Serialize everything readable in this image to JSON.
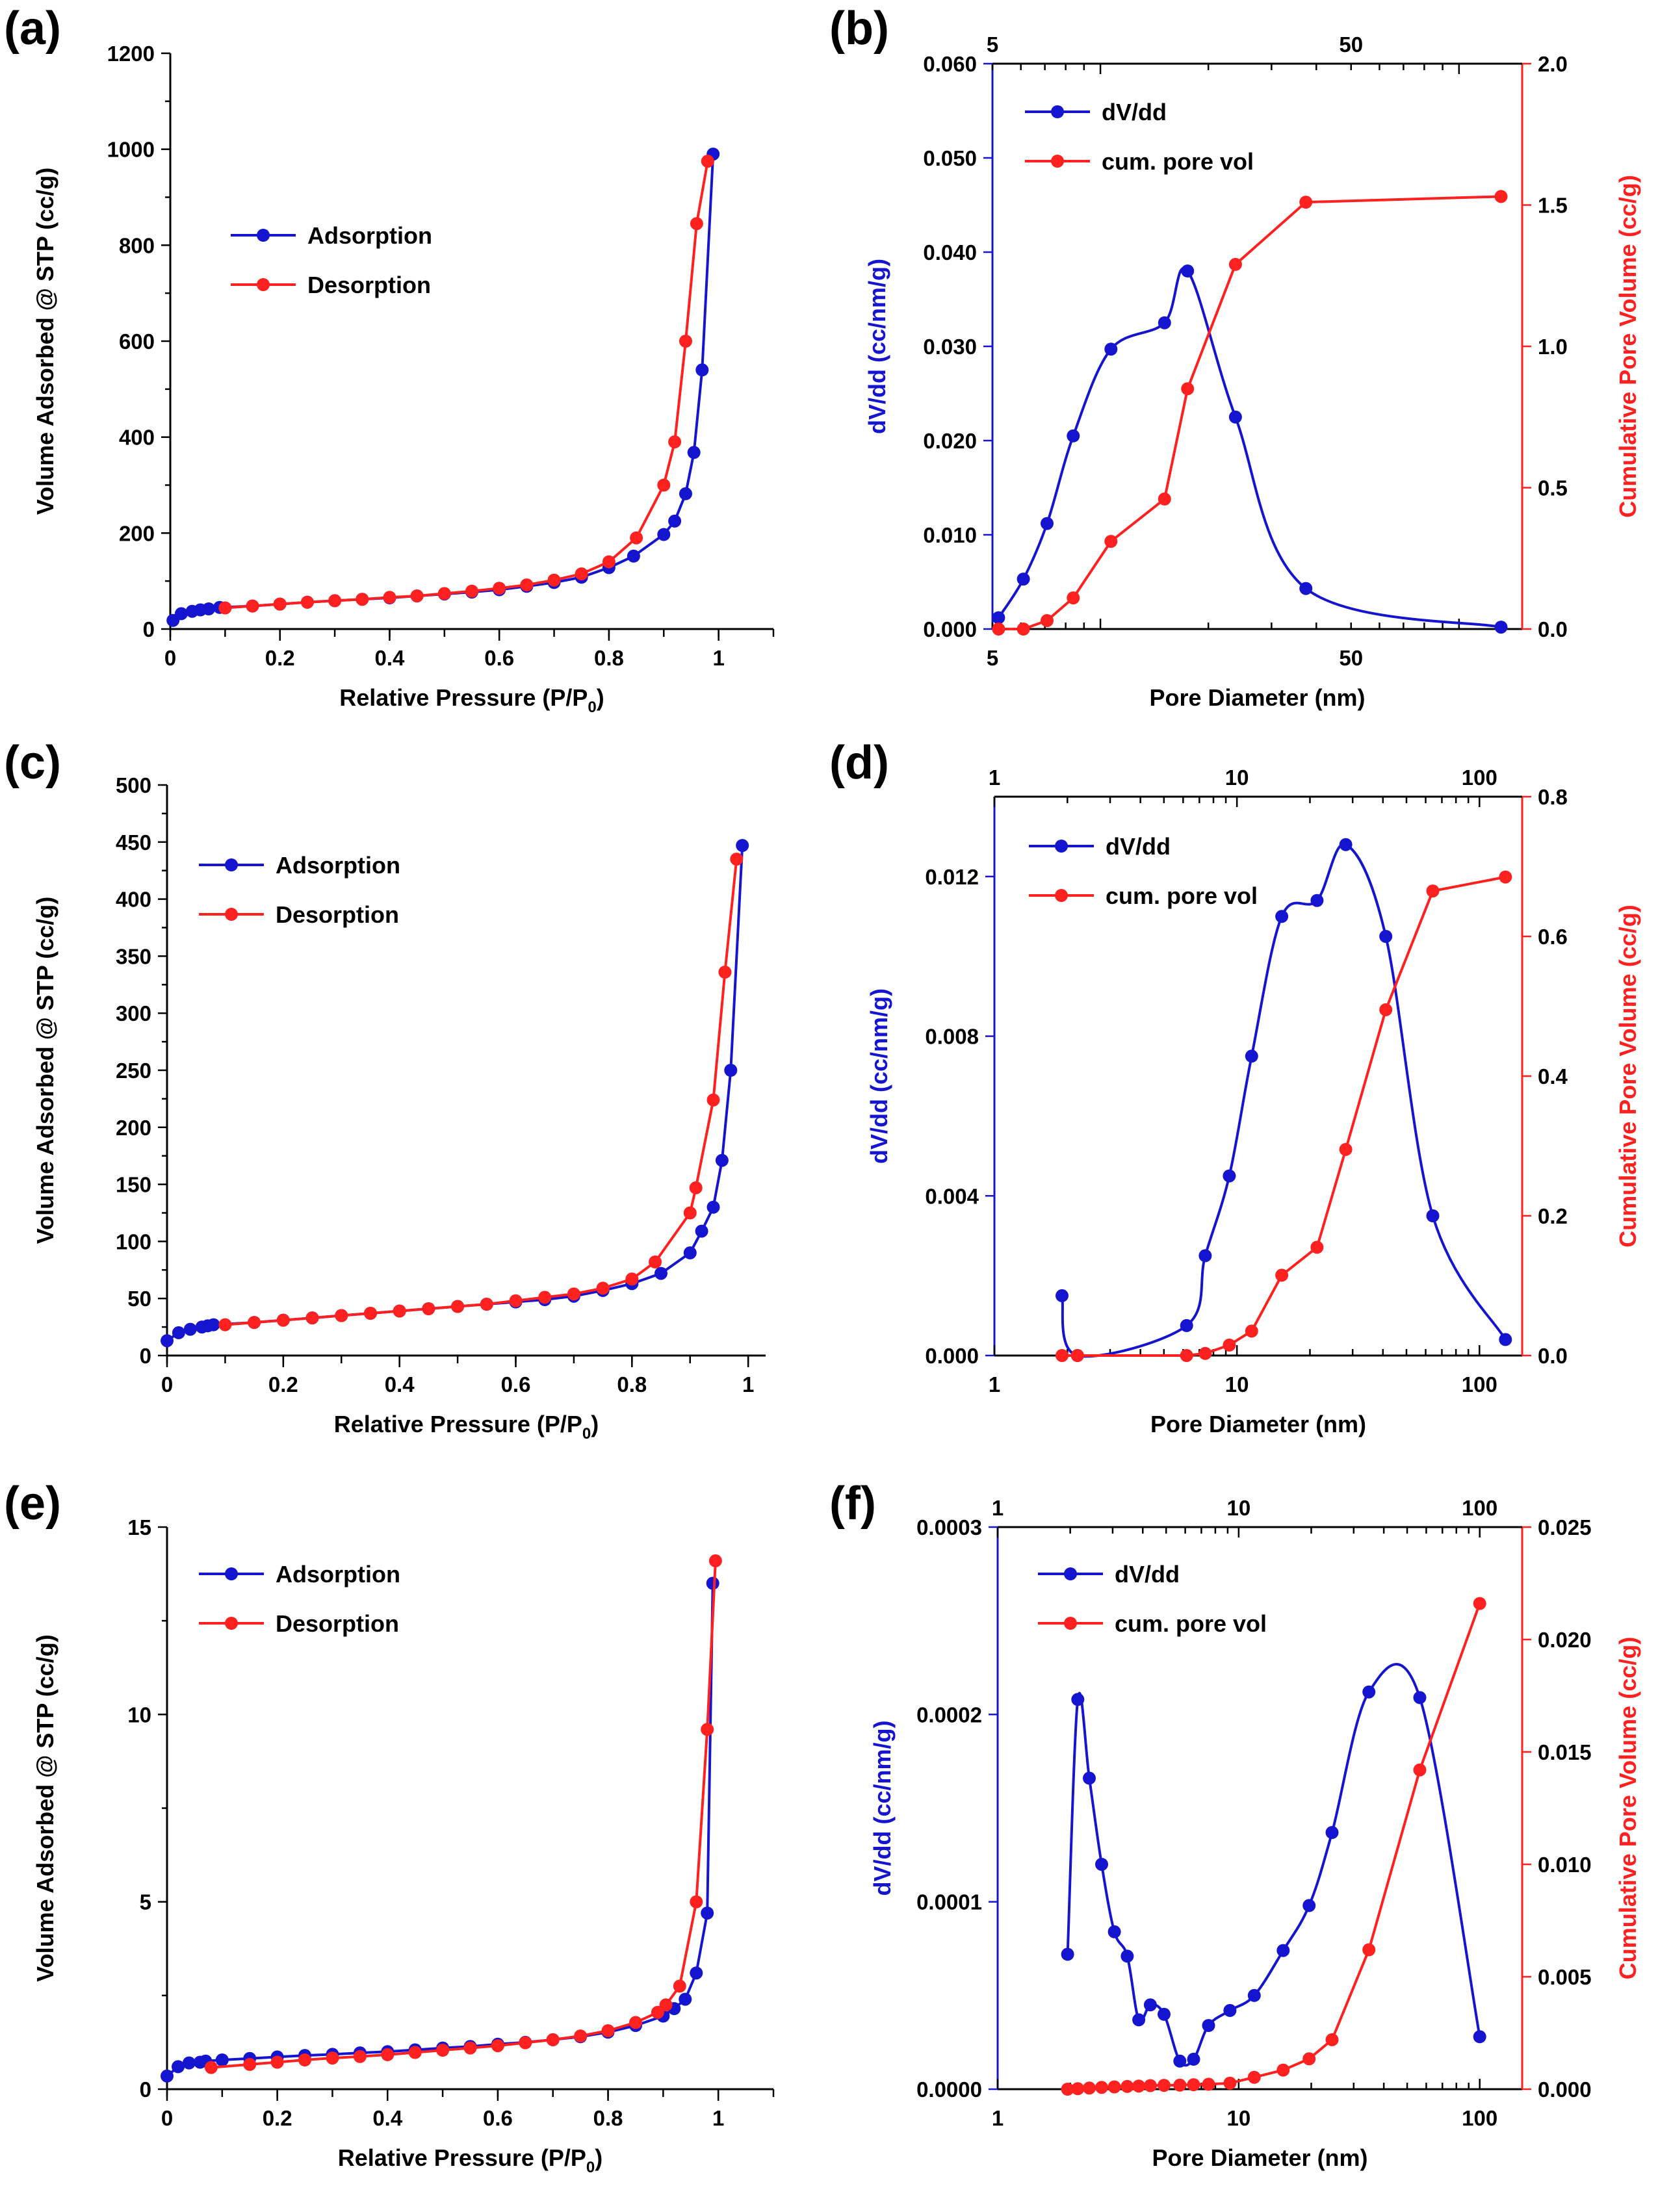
{
  "colors": {
    "blue": "#1515d0",
    "red": "#ff2020",
    "axis": "#000000"
  },
  "chart_data": [
    {
      "id": "a",
      "label": "(a)",
      "type": "line",
      "xscale": "linear",
      "xlabel_main": "Relative Pressure (P/P",
      "xlabel_sub": "0",
      "xlabel_end": ")",
      "ylabel": "Volume Adsorbed @ STP (cc/g)",
      "xlim": [
        0,
        1.1
      ],
      "ylim": [
        0,
        1200
      ],
      "xticks": [
        0,
        0.2,
        0.4,
        0.6,
        0.8,
        1
      ],
      "xtick_labels": [
        "0",
        "0.2",
        "0.4",
        "0.6",
        "0.8",
        "1"
      ],
      "yticks": [
        0,
        200,
        400,
        600,
        800,
        1000,
        1200
      ],
      "ytick_labels": [
        "0",
        "200",
        "400",
        "600",
        "800",
        "1000",
        "1200"
      ],
      "legend_position": "center-left",
      "series": [
        {
          "name": "Adsorption",
          "color": "#1515d0",
          "x": [
            0.005,
            0.02,
            0.04,
            0.055,
            0.07,
            0.09,
            0.15,
            0.2,
            0.25,
            0.3,
            0.35,
            0.4,
            0.45,
            0.5,
            0.55,
            0.6,
            0.65,
            0.7,
            0.75,
            0.8,
            0.845,
            0.9,
            0.92,
            0.94,
            0.955,
            0.97,
            0.99
          ],
          "y": [
            18,
            32,
            37,
            40,
            42,
            45,
            48,
            52,
            56,
            59,
            62,
            65,
            69,
            73,
            77,
            82,
            89,
            97,
            108,
            128,
            152,
            197,
            225,
            282,
            368,
            540,
            990
          ]
        },
        {
          "name": "Desorption",
          "color": "#ff2020",
          "x": [
            0.1,
            0.15,
            0.2,
            0.25,
            0.3,
            0.35,
            0.4,
            0.45,
            0.5,
            0.55,
            0.6,
            0.65,
            0.7,
            0.75,
            0.8,
            0.85,
            0.9,
            0.92,
            0.94,
            0.96,
            0.98
          ],
          "y": [
            44,
            48,
            52,
            56,
            59,
            62,
            66,
            69,
            74,
            79,
            85,
            92,
            102,
            115,
            140,
            190,
            300,
            390,
            600,
            845,
            975
          ]
        }
      ]
    },
    {
      "id": "b",
      "label": "(b)",
      "type": "line",
      "xscale": "log",
      "xlabel": "Pore Diameter (nm)",
      "ylabel": "dV/dd (cc/nm/g)",
      "y2label": "Cumulative Pore Volume (cc/g)",
      "xlim": [
        5,
        150
      ],
      "ylim": [
        0,
        0.06
      ],
      "y2lim": [
        0,
        2.0
      ],
      "xticks": [
        5,
        50
      ],
      "xtick_labels": [
        "5",
        "50"
      ],
      "top_xticks": [
        5,
        50
      ],
      "top_xtick_labels": [
        "5",
        "50"
      ],
      "yticks": [
        0,
        0.01,
        0.02,
        0.03,
        0.04,
        0.05,
        0.06
      ],
      "ytick_labels": [
        "0.000",
        "0.010",
        "0.020",
        "0.030",
        "0.040",
        "0.050",
        "0.060"
      ],
      "y2ticks": [
        0,
        0.5,
        1.0,
        1.5,
        2.0
      ],
      "y2tick_labels": [
        "0.0",
        "0.5",
        "1.0",
        "1.5",
        "2.0"
      ],
      "legend_position": "top-left",
      "series": [
        {
          "name": "dV/dd",
          "color": "#1515d0",
          "axis": "left",
          "x": [
            5.2,
            6.1,
            7.1,
            8.4,
            10.7,
            15.1,
            17.5,
            23.8,
            37.4,
            131
          ],
          "y": [
            0.0012,
            0.0053,
            0.0112,
            0.0205,
            0.0297,
            0.0325,
            0.038,
            0.0225,
            0.0043,
            0.0002
          ]
        },
        {
          "name": "cum. pore vol",
          "color": "#ff2020",
          "axis": "left2",
          "x": [
            5.2,
            6.1,
            7.1,
            8.4,
            10.7,
            15.1,
            17.5,
            23.8,
            37.4,
            131
          ],
          "y": [
            0.0,
            0.0,
            0.03,
            0.11,
            0.31,
            0.46,
            0.85,
            1.29,
            1.51,
            1.53
          ]
        }
      ]
    },
    {
      "id": "c",
      "label": "(c)",
      "type": "line",
      "xscale": "linear",
      "xlabel_main": "Relative Pressure (P/P",
      "xlabel_sub": "0",
      "xlabel_end": ")",
      "ylabel": "Volume Adsorbed @ STP (cc/g)",
      "xlim": [
        0,
        1.03
      ],
      "ylim": [
        0,
        500
      ],
      "xticks": [
        0,
        0.2,
        0.4,
        0.6,
        0.8,
        1
      ],
      "xtick_labels": [
        "0",
        "0.2",
        "0.4",
        "0.6",
        "0.8",
        "1"
      ],
      "yticks": [
        0,
        50,
        100,
        150,
        200,
        250,
        300,
        350,
        400,
        450,
        500
      ],
      "ytick_labels": [
        "0",
        "50",
        "100",
        "150",
        "200",
        "250",
        "300",
        "350",
        "400",
        "450",
        "500"
      ],
      "legend_position": "top-left",
      "series": [
        {
          "name": "Adsorption",
          "color": "#1515d0",
          "x": [
            0.0,
            0.02,
            0.04,
            0.06,
            0.07,
            0.08,
            0.15,
            0.2,
            0.25,
            0.3,
            0.35,
            0.4,
            0.45,
            0.5,
            0.55,
            0.6,
            0.65,
            0.7,
            0.75,
            0.8,
            0.85,
            0.9,
            0.92,
            0.94,
            0.955,
            0.97,
            0.99
          ],
          "y": [
            13,
            20,
            23,
            25,
            26,
            27,
            29,
            31,
            33,
            35,
            37,
            39,
            41,
            43,
            45,
            47,
            49,
            52,
            57,
            63,
            72,
            90,
            109,
            130,
            171,
            250,
            447
          ]
        },
        {
          "name": "Desorption",
          "color": "#ff2020",
          "x": [
            0.1,
            0.15,
            0.2,
            0.25,
            0.3,
            0.35,
            0.4,
            0.45,
            0.5,
            0.55,
            0.6,
            0.65,
            0.7,
            0.75,
            0.8,
            0.84,
            0.9,
            0.91,
            0.94,
            0.96,
            0.98
          ],
          "y": [
            27,
            29,
            31,
            33,
            35,
            37,
            39,
            41,
            43,
            45,
            48,
            51,
            54,
            59,
            67,
            82,
            125,
            147,
            224,
            336,
            435
          ]
        }
      ]
    },
    {
      "id": "d",
      "label": "(d)",
      "type": "line",
      "xscale": "log",
      "xlabel": "Pore Diameter (nm)",
      "ylabel": "dV/dd (cc/nm/g)",
      "y2label": "Cumulative Pore Volume (cc/g)",
      "xlim": [
        1,
        150
      ],
      "ylim": [
        0,
        0.014
      ],
      "y2lim": [
        0,
        0.8
      ],
      "xticks": [
        1,
        10,
        100
      ],
      "xtick_labels": [
        "1",
        "10",
        "100"
      ],
      "top_xticks": [
        1,
        10,
        100
      ],
      "top_xtick_labels": [
        "1",
        "10",
        "100"
      ],
      "yticks": [
        0,
        0.004,
        0.008,
        0.012
      ],
      "ytick_labels": [
        "0.000",
        "0.004",
        "0.008",
        "0.012"
      ],
      "y2ticks": [
        0,
        0.2,
        0.4,
        0.6,
        0.8
      ],
      "y2tick_labels": [
        "0.0",
        "0.2",
        "0.4",
        "0.6",
        "0.8"
      ],
      "legend_position": "top-left",
      "series": [
        {
          "name": "dV/dd",
          "color": "#1515d0",
          "axis": "left",
          "x": [
            1.9,
            2.2,
            6.2,
            7.4,
            9.3,
            11.5,
            15.3,
            21.4,
            28.1,
            41.1,
            64.2,
            128
          ],
          "y": [
            0.0015,
            0.0,
            0.00075,
            0.0025,
            0.0045,
            0.0075,
            0.011,
            0.0114,
            0.0128,
            0.0105,
            0.0035,
            0.0004
          ]
        },
        {
          "name": "cum. pore vol",
          "color": "#ff2020",
          "axis": "right",
          "x": [
            1.9,
            2.2,
            6.2,
            7.4,
            9.3,
            11.5,
            15.3,
            21.4,
            28.1,
            41.1,
            64.2,
            128
          ],
          "y": [
            0.0,
            0.0,
            0.0,
            0.003,
            0.015,
            0.035,
            0.115,
            0.155,
            0.295,
            0.495,
            0.665,
            0.685
          ]
        }
      ]
    },
    {
      "id": "e",
      "label": "(e)",
      "type": "line",
      "xscale": "linear",
      "xlabel_main": "Relative Pressure (P/P",
      "xlabel_sub": "0",
      "xlabel_end": ")",
      "ylabel": "Volume Adsorbed @ STP (cc/g)",
      "xlim": [
        0,
        1.1
      ],
      "ylim": [
        0,
        15
      ],
      "xticks": [
        0,
        0.2,
        0.4,
        0.6,
        0.8,
        1
      ],
      "xtick_labels": [
        "0",
        "0.2",
        "0.4",
        "0.6",
        "0.8",
        "1"
      ],
      "yticks": [
        0,
        5,
        10,
        15
      ],
      "ytick_labels": [
        "0",
        "5",
        "10",
        "15"
      ],
      "legend_position": "top-left",
      "series": [
        {
          "name": "Adsorption",
          "color": "#1515d0",
          "x": [
            0.0,
            0.02,
            0.04,
            0.06,
            0.07,
            0.1,
            0.15,
            0.2,
            0.25,
            0.3,
            0.35,
            0.4,
            0.45,
            0.5,
            0.55,
            0.6,
            0.65,
            0.7,
            0.75,
            0.8,
            0.85,
            0.9,
            0.92,
            0.94,
            0.96,
            0.98,
            0.99
          ],
          "y": [
            0.35,
            0.6,
            0.7,
            0.72,
            0.75,
            0.78,
            0.82,
            0.86,
            0.9,
            0.93,
            0.97,
            1.0,
            1.05,
            1.1,
            1.14,
            1.2,
            1.25,
            1.32,
            1.4,
            1.52,
            1.7,
            1.95,
            2.15,
            2.4,
            3.1,
            4.7,
            13.5
          ]
        },
        {
          "name": "Desorption",
          "color": "#ff2020",
          "x": [
            0.08,
            0.15,
            0.2,
            0.25,
            0.3,
            0.35,
            0.4,
            0.45,
            0.5,
            0.55,
            0.6,
            0.65,
            0.7,
            0.75,
            0.8,
            0.85,
            0.89,
            0.905,
            0.93,
            0.96,
            0.98,
            0.995
          ],
          "y": [
            0.58,
            0.66,
            0.72,
            0.78,
            0.83,
            0.87,
            0.92,
            0.98,
            1.04,
            1.1,
            1.16,
            1.24,
            1.32,
            1.42,
            1.56,
            1.78,
            2.05,
            2.25,
            2.75,
            5.0,
            9.6,
            14.1
          ]
        }
      ]
    },
    {
      "id": "f",
      "label": "(f)",
      "type": "line",
      "xscale": "log",
      "xlabel": "Pore Diameter (nm)",
      "ylabel": "dV/dd (cc/nm/g)",
      "y2label": "Cumulative Pore Volume (cc/g)",
      "xlim": [
        1,
        150
      ],
      "ylim": [
        0,
        0.0003
      ],
      "y2lim": [
        0,
        0.025
      ],
      "xticks": [
        1,
        10,
        100
      ],
      "xtick_labels": [
        "1",
        "10",
        "100"
      ],
      "top_xticks": [
        1,
        10,
        100
      ],
      "top_xtick_labels": [
        "1",
        "10",
        "100"
      ],
      "yticks": [
        0,
        0.0001,
        0.0002,
        0.0003
      ],
      "ytick_labels": [
        "0.0000",
        "0.0001",
        "0.0002",
        "0.0003"
      ],
      "y2ticks": [
        0,
        0.005,
        0.01,
        0.015,
        0.02,
        0.025
      ],
      "y2tick_labels": [
        "0.000",
        "0.005",
        "0.010",
        "0.015",
        "0.020",
        "0.025"
      ],
      "legend_position": "top-left",
      "series": [
        {
          "name": "dV/dd",
          "color": "#1515d0",
          "axis": "left",
          "x": [
            1.95,
            2.15,
            2.4,
            2.7,
            3.05,
            3.45,
            3.85,
            4.3,
            4.9,
            5.7,
            6.5,
            7.5,
            9.2,
            11.6,
            15.3,
            19.6,
            24.4,
            34.7,
            56.4,
            100
          ],
          "y": [
            7.2e-05,
            0.000208,
            0.000166,
            0.00012,
            8.4e-05,
            7.1e-05,
            3.7e-05,
            4.5e-05,
            4e-05,
            1.5e-05,
            1.6e-05,
            3.4e-05,
            4.2e-05,
            5e-05,
            7.4e-05,
            9.8e-05,
            0.000137,
            0.000212,
            0.000209,
            2.8e-05
          ]
        },
        {
          "name": "cum. pore vol",
          "color": "#ff2020",
          "axis": "right",
          "x": [
            1.95,
            2.15,
            2.4,
            2.7,
            3.05,
            3.45,
            3.85,
            4.3,
            4.9,
            5.7,
            6.5,
            7.5,
            9.2,
            11.6,
            15.3,
            19.6,
            24.4,
            34.7,
            56.4,
            100
          ],
          "y": [
            0.0,
            2e-05,
            5e-05,
            8e-05,
            0.0001,
            0.00012,
            0.00014,
            0.00016,
            0.00017,
            0.00018,
            0.0002,
            0.00022,
            0.00027,
            0.00053,
            0.00085,
            0.00135,
            0.0022,
            0.0062,
            0.0142,
            0.0216
          ]
        }
      ]
    }
  ]
}
